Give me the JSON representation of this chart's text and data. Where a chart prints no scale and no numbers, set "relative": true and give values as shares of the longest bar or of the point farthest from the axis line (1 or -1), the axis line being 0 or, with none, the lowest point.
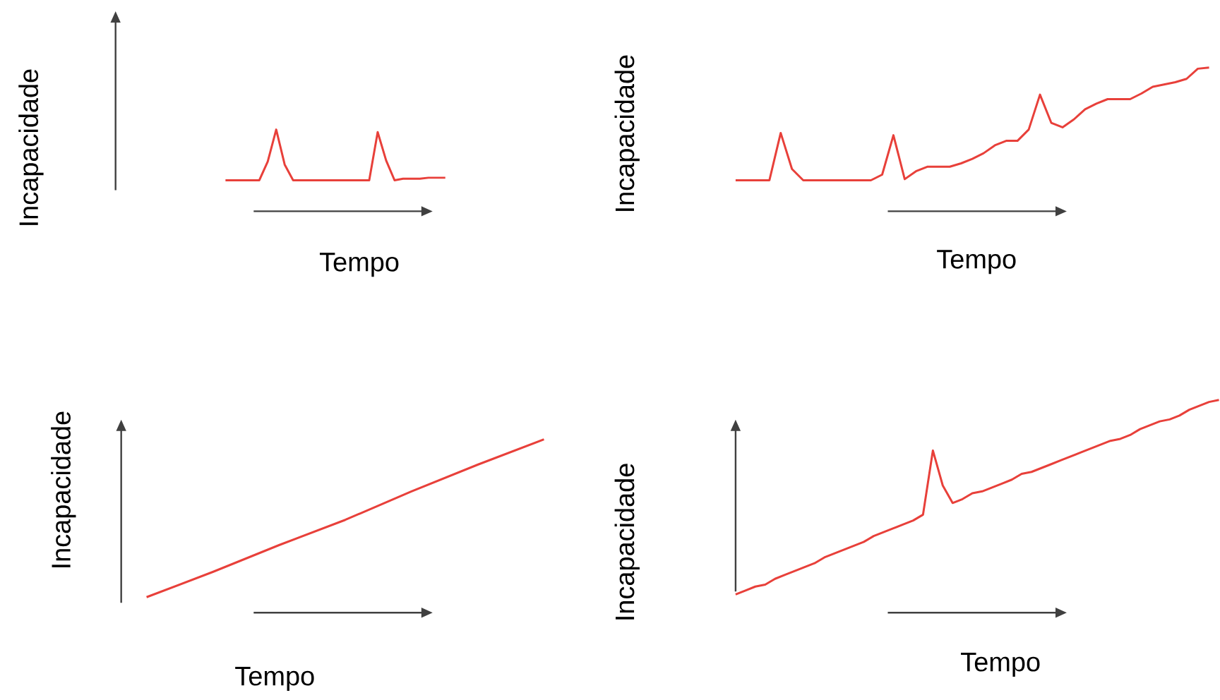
{
  "chart_data": [
    {
      "type": "line",
      "relative": true,
      "ylabel": "Incapacidade",
      "xlabel": "Tempo",
      "color": "#e8403a",
      "categories": [
        null,
        null,
        null,
        null,
        null,
        null,
        null,
        null,
        null,
        null,
        null,
        null,
        null,
        null,
        null,
        null,
        null,
        null,
        null,
        null,
        null,
        null,
        null,
        null,
        null,
        null,
        null,
        null,
        null,
        null,
        null,
        null,
        null,
        null,
        null,
        null,
        null,
        null,
        null,
        null
      ],
      "values": [
        null,
        null,
        null,
        null,
        null,
        null,
        null,
        null,
        null,
        null,
        null,
        null,
        null,
        0,
        0,
        0,
        0,
        0,
        0.37,
        1,
        0.31,
        0,
        0,
        0,
        0,
        0,
        0,
        0,
        0,
        0,
        0,
        0.95,
        0.39,
        0,
        0.03,
        0.03,
        0.03,
        0.05,
        0.05,
        0.05
      ]
    },
    {
      "type": "line",
      "relative": true,
      "ylabel": "Incapacidade",
      "xlabel": "Tempo",
      "color": "#e8403a",
      "categories": [
        null,
        null,
        null,
        null,
        null,
        null,
        null,
        null,
        null,
        null,
        null,
        null,
        null,
        null,
        null,
        null,
        null,
        null,
        null,
        null,
        null,
        null,
        null,
        null,
        null,
        null,
        null,
        null,
        null,
        null,
        null,
        null,
        null,
        null,
        null,
        null,
        null,
        null,
        null,
        null,
        null,
        null,
        null
      ],
      "values": [
        0,
        0,
        0,
        0,
        0.42,
        0.1,
        0,
        0,
        0,
        0,
        0,
        0,
        0,
        0.05,
        0.4,
        0.01,
        0.08,
        0.12,
        0.12,
        0.12,
        0.15,
        0.19,
        0.24,
        0.31,
        0.35,
        0.35,
        0.45,
        0.76,
        0.51,
        0.47,
        0.54,
        0.63,
        0.68,
        0.72,
        0.72,
        0.72,
        0.77,
        0.83,
        0.85,
        0.87,
        0.9,
        0.99,
        1
      ]
    },
    {
      "type": "line",
      "relative": true,
      "ylabel": "Incapacidade",
      "xlabel": "Tempo",
      "color": "#e8403a",
      "categories": [
        null,
        null,
        null,
        null,
        null,
        null,
        null
      ],
      "values": [
        0,
        0.16,
        0.33,
        0.49,
        0.67,
        0.84,
        1
      ]
    },
    {
      "type": "line",
      "relative": true,
      "ylabel": "Incapacidade",
      "xlabel": "Tempo",
      "color": "#e8403a",
      "categories": [
        null,
        null,
        null,
        null,
        null,
        null,
        null,
        null,
        null,
        null,
        null,
        null,
        null,
        null,
        null,
        null,
        null,
        null,
        null,
        null,
        null,
        null,
        null,
        null,
        null,
        null,
        null,
        null,
        null,
        null,
        null,
        null,
        null,
        null,
        null,
        null,
        null,
        null,
        null,
        null,
        null,
        null,
        null,
        null,
        null,
        null,
        null,
        null,
        null,
        null
      ],
      "values": [
        0,
        0.02,
        0.04,
        0.05,
        0.08,
        0.1,
        0.12,
        0.14,
        0.16,
        0.19,
        0.21,
        0.23,
        0.25,
        0.27,
        0.3,
        0.32,
        0.34,
        0.36,
        0.38,
        0.41,
        0.74,
        0.56,
        0.47,
        0.49,
        0.52,
        0.53,
        0.55,
        0.57,
        0.59,
        0.62,
        0.63,
        0.65,
        0.67,
        0.69,
        0.71,
        0.73,
        0.75,
        0.77,
        0.79,
        0.8,
        0.82,
        0.85,
        0.87,
        0.89,
        0.9,
        0.92,
        0.95,
        0.97,
        0.99,
        1
      ]
    }
  ]
}
